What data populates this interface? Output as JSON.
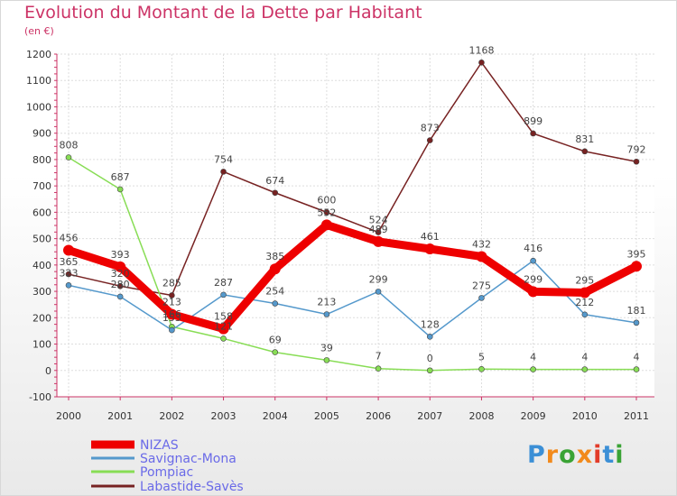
{
  "header": {
    "title": "Evolution du Montant de la Dette par Habitant",
    "subtitle": "(en €)"
  },
  "logo": {
    "text": "Proxiti",
    "colors": [
      "#3b8fd6",
      "#f28a1c",
      "#3aa335",
      "#f28a1c",
      "#e23c2a",
      "#3b8fd6",
      "#3aa335"
    ]
  },
  "chart_data": {
    "type": "line",
    "title": "Evolution du Montant de la Dette par Habitant",
    "subtitle": "(en €)",
    "xlabel": "",
    "ylabel": "",
    "x": [
      "2000",
      "2001",
      "2002",
      "2003",
      "2004",
      "2005",
      "2006",
      "2007",
      "2008",
      "2009",
      "2010",
      "2011"
    ],
    "yticks": [
      -100,
      0,
      100,
      200,
      300,
      400,
      500,
      600,
      700,
      800,
      900,
      1000,
      1100,
      1200
    ],
    "ylim": [
      -100,
      1200
    ],
    "grid": true,
    "legend": "bottom-left",
    "series": [
      {
        "name": "NIZAS",
        "color": "#ee0000",
        "width": 9,
        "values": [
          456,
          393,
          213,
          158,
          385,
          552,
          489,
          461,
          432,
          299,
          295,
          395
        ]
      },
      {
        "name": "Savignac-Mona",
        "color": "#5599cc",
        "width": 1.5,
        "values": [
          323,
          280,
          153,
          287,
          254,
          213,
          299,
          128,
          275,
          416,
          212,
          181
        ]
      },
      {
        "name": "Pompiac",
        "color": "#88dd55",
        "width": 1.5,
        "values": [
          808,
          687,
          166,
          121,
          69,
          39,
          7,
          0,
          5,
          4,
          4,
          4
        ]
      },
      {
        "name": "Labastide-Savès",
        "color": "#772222",
        "width": 1.5,
        "values": [
          365,
          320,
          285,
          754,
          674,
          600,
          524,
          873,
          1168,
          899,
          831,
          792
        ]
      }
    ]
  }
}
